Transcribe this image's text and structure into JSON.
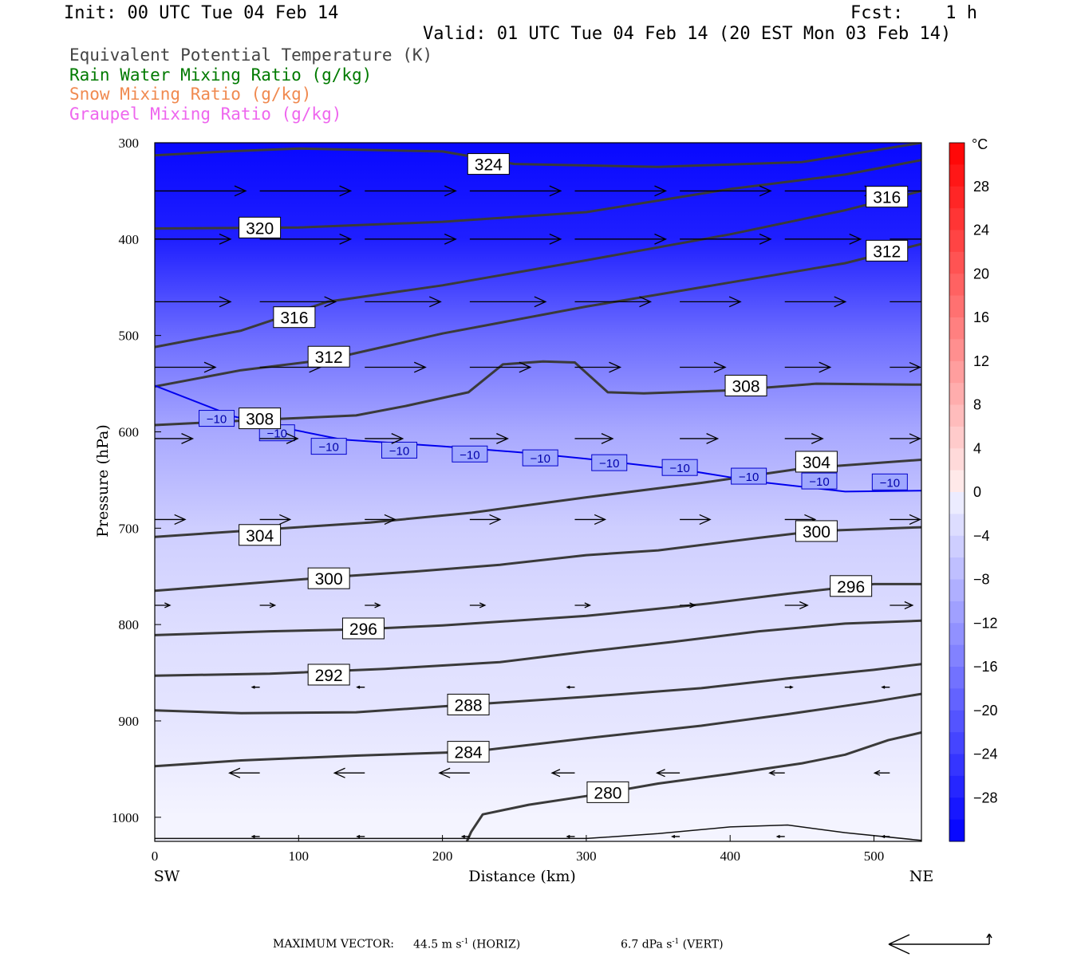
{
  "header": {
    "init": "Init: 00 UTC Tue 04 Feb 14",
    "fcst": "Fcst:    1 h",
    "valid": "Valid: 01 UTC Tue 04 Feb 14 (20 EST Mon 03 Feb 14)"
  },
  "legend": [
    {
      "label": "Equivalent Potential Temperature (K)",
      "color": "#444444"
    },
    {
      "label": "Rain Water Mixing Ratio (g/kg)",
      "color": "#007a00"
    },
    {
      "label": "Snow Mixing Ratio (g/kg)",
      "color": "#f08a50"
    },
    {
      "label": "Graupel Mixing Ratio (g/kg)",
      "color": "#ee66ee"
    }
  ],
  "footer": {
    "max_vector": "MAXIMUM VECTOR:",
    "horiz": "44.5 m s",
    "horiz_exp": "-1",
    "horiz_unit": " (HORIZ)",
    "vert": "6.7 dPa s",
    "vert_exp": "-1",
    "vert_unit": " (VERT)"
  },
  "chart_data": {
    "type": "cross-section contour",
    "xlabel": "Distance (km)",
    "ylabel": "Pressure (hPa)",
    "xlim": [
      0,
      533
    ],
    "ylim": [
      1025,
      300
    ],
    "x_ticks": [
      0,
      100,
      200,
      300,
      400,
      500
    ],
    "y_ticks": [
      300,
      400,
      500,
      600,
      700,
      800,
      900,
      1000
    ],
    "x_end_labels": {
      "left": "SW",
      "right": "NE"
    },
    "colorbar": {
      "unit": "°C",
      "min": -32,
      "max": 32,
      "labels": [
        28,
        24,
        20,
        16,
        12,
        8,
        4,
        0,
        -4,
        -8,
        -12,
        -16,
        -20,
        -24,
        -28
      ],
      "label_text": [
        "28",
        "24",
        "20",
        "16",
        "12",
        "8",
        "4",
        "0",
        "−4",
        "−8",
        "−12",
        "−16",
        "−20",
        "−24",
        "−28"
      ]
    },
    "temperature_field_depth_by_pressure": [
      {
        "p": 300,
        "t": -31
      },
      {
        "p": 400,
        "t": -28
      },
      {
        "p": 500,
        "t": -18
      },
      {
        "p": 600,
        "t": -10
      },
      {
        "p": 700,
        "t": -5
      },
      {
        "p": 800,
        "t": -3
      },
      {
        "p": 900,
        "t": -2
      },
      {
        "p": 1000,
        "t": 0
      }
    ],
    "theta_e_contours": [
      {
        "label": "324",
        "points": [
          [
            0,
            313
          ],
          [
            50,
            309
          ],
          [
            100,
            306
          ],
          [
            200,
            309
          ],
          [
            250,
            322
          ],
          [
            350,
            325
          ],
          [
            450,
            320
          ],
          [
            500,
            308
          ],
          [
            533,
            300
          ]
        ],
        "labels_at": [
          [
            232,
            322
          ]
        ]
      },
      {
        "label": "320",
        "points": [
          [
            0,
            389
          ],
          [
            100,
            388
          ],
          [
            200,
            382
          ],
          [
            300,
            372
          ],
          [
            400,
            348
          ],
          [
            480,
            333
          ],
          [
            533,
            318
          ]
        ],
        "labels_at": [
          [
            73,
            388
          ]
        ]
      },
      {
        "label": "316",
        "points": [
          [
            0,
            512
          ],
          [
            60,
            495
          ],
          [
            120,
            465
          ],
          [
            200,
            448
          ],
          [
            300,
            422
          ],
          [
            400,
            395
          ],
          [
            480,
            370
          ],
          [
            533,
            350
          ]
        ],
        "labels_at": [
          [
            97,
            481
          ],
          [
            509,
            356
          ]
        ]
      },
      {
        "label": "312",
        "points": [
          [
            0,
            553
          ],
          [
            60,
            536
          ],
          [
            120,
            525
          ],
          [
            200,
            498
          ],
          [
            300,
            470
          ],
          [
            400,
            445
          ],
          [
            480,
            425
          ],
          [
            533,
            405
          ]
        ],
        "labels_at": [
          [
            121,
            522
          ],
          [
            509,
            412
          ]
        ]
      },
      {
        "label": "308",
        "points": [
          [
            0,
            593
          ],
          [
            80,
            587
          ],
          [
            140,
            583
          ],
          [
            175,
            573
          ],
          [
            218,
            559
          ],
          [
            242,
            530
          ],
          [
            270,
            527
          ],
          [
            292,
            528
          ],
          [
            315,
            559
          ],
          [
            340,
            560
          ],
          [
            400,
            557
          ],
          [
            460,
            550
          ],
          [
            533,
            551
          ]
        ],
        "labels_at": [
          [
            73,
            586
          ],
          [
            411,
            552
          ]
        ]
      },
      {
        "label": "304",
        "points": [
          [
            0,
            709
          ],
          [
            80,
            701
          ],
          [
            150,
            694
          ],
          [
            220,
            684
          ],
          [
            300,
            668
          ],
          [
            380,
            653
          ],
          [
            450,
            638
          ],
          [
            533,
            629
          ]
        ],
        "labels_at": [
          [
            73,
            707
          ],
          [
            460,
            631
          ]
        ]
      },
      {
        "label": "300",
        "points": [
          [
            0,
            765
          ],
          [
            60,
            758
          ],
          [
            120,
            751
          ],
          [
            180,
            745
          ],
          [
            240,
            738
          ],
          [
            300,
            728
          ],
          [
            350,
            723
          ],
          [
            420,
            710
          ],
          [
            460,
            703
          ],
          [
            533,
            699
          ]
        ],
        "labels_at": [
          [
            121,
            752
          ],
          [
            460,
            703
          ]
        ]
      },
      {
        "label": "296",
        "points": [
          [
            0,
            811
          ],
          [
            80,
            807
          ],
          [
            140,
            805
          ],
          [
            200,
            801
          ],
          [
            300,
            791
          ],
          [
            380,
            779
          ],
          [
            440,
            768
          ],
          [
            500,
            758
          ],
          [
            533,
            758
          ]
        ],
        "labels_at": [
          [
            145,
            804
          ],
          [
            484,
            760
          ]
        ]
      },
      {
        "label": "292",
        "points": [
          [
            0,
            853
          ],
          [
            80,
            851
          ],
          [
            160,
            846
          ],
          [
            240,
            839
          ],
          [
            300,
            828
          ],
          [
            360,
            818
          ],
          [
            420,
            807
          ],
          [
            480,
            799
          ],
          [
            533,
            796
          ]
        ],
        "labels_at": [
          [
            121,
            852
          ],
          [
            121,
            852
          ]
        ]
      },
      {
        "label": "288",
        "points": [
          [
            0,
            889
          ],
          [
            60,
            892
          ],
          [
            140,
            891
          ],
          [
            200,
            885
          ],
          [
            300,
            875
          ],
          [
            380,
            866
          ],
          [
            440,
            856
          ],
          [
            500,
            847
          ],
          [
            533,
            841
          ]
        ],
        "labels_at": [
          [
            218,
            883
          ]
        ]
      },
      {
        "label": "284",
        "points": [
          [
            0,
            947
          ],
          [
            60,
            941
          ],
          [
            140,
            936
          ],
          [
            220,
            932
          ],
          [
            300,
            918
          ],
          [
            380,
            905
          ],
          [
            440,
            893
          ],
          [
            500,
            880
          ],
          [
            533,
            872
          ]
        ],
        "labels_at": [
          [
            218,
            932
          ]
        ]
      },
      {
        "label": "280",
        "points": [
          [
            217,
            1025
          ],
          [
            220,
            1015
          ],
          [
            228,
            997
          ],
          [
            260,
            987
          ],
          [
            300,
            978
          ],
          [
            350,
            965
          ],
          [
            400,
            955
          ],
          [
            450,
            944
          ],
          [
            480,
            935
          ],
          [
            510,
            920
          ],
          [
            533,
            912
          ]
        ],
        "labels_at": [
          [
            315,
            974
          ]
        ]
      },
      {
        "label": "",
        "points": [
          [
            0,
            1022
          ],
          [
            100,
            1022
          ],
          [
            200,
            1022
          ],
          [
            300,
            1022
          ],
          [
            350,
            1017
          ],
          [
            400,
            1010
          ],
          [
            440,
            1008
          ],
          [
            480,
            1016
          ],
          [
            533,
            1024
          ]
        ],
        "labels_at": []
      }
    ],
    "isotherm_minus10": {
      "label": "−10",
      "points": [
        [
          0,
          552
        ],
        [
          55,
          584
        ],
        [
          80,
          593
        ],
        [
          130,
          608
        ],
        [
          200,
          615
        ],
        [
          260,
          622
        ],
        [
          300,
          628
        ],
        [
          370,
          640
        ],
        [
          420,
          652
        ],
        [
          480,
          662
        ],
        [
          533,
          661
        ]
      ],
      "labels_at": [
        [
          43,
          586
        ],
        [
          85,
          601
        ],
        [
          121,
          615
        ],
        [
          170,
          619
        ],
        [
          219,
          623
        ],
        [
          268,
          627
        ],
        [
          316,
          632
        ],
        [
          365,
          637
        ],
        [
          413,
          646
        ],
        [
          462,
          651
        ],
        [
          511,
          652
        ]
      ]
    },
    "wind_vectors": [
      {
        "x": 0,
        "p": 350,
        "u": 12,
        "v": 0
      },
      {
        "x": 73,
        "p": 350,
        "u": 12,
        "v": 0
      },
      {
        "x": 146,
        "p": 350,
        "u": 12,
        "v": 0
      },
      {
        "x": 219,
        "p": 350,
        "u": 12,
        "v": 0
      },
      {
        "x": 292,
        "p": 350,
        "u": 12,
        "v": 0
      },
      {
        "x": 365,
        "p": 350,
        "u": 12,
        "v": 0
      },
      {
        "x": 438,
        "p": 350,
        "u": 12,
        "v": 0
      },
      {
        "x": 511,
        "p": 350,
        "u": 10,
        "v": 0
      },
      {
        "x": 0,
        "p": 400,
        "u": 10,
        "v": 0
      },
      {
        "x": 73,
        "p": 400,
        "u": 12,
        "v": 0
      },
      {
        "x": 146,
        "p": 400,
        "u": 12,
        "v": 0
      },
      {
        "x": 219,
        "p": 400,
        "u": 12,
        "v": 0
      },
      {
        "x": 292,
        "p": 400,
        "u": 12,
        "v": 0
      },
      {
        "x": 365,
        "p": 400,
        "u": 12,
        "v": 0
      },
      {
        "x": 438,
        "p": 400,
        "u": 10,
        "v": 0
      },
      {
        "x": 511,
        "p": 400,
        "u": 8,
        "v": 0
      },
      {
        "x": 0,
        "p": 465,
        "u": 10,
        "v": 0
      },
      {
        "x": 73,
        "p": 465,
        "u": 10,
        "v": 0
      },
      {
        "x": 146,
        "p": 465,
        "u": 10,
        "v": 0
      },
      {
        "x": 219,
        "p": 465,
        "u": 10,
        "v": 0
      },
      {
        "x": 292,
        "p": 465,
        "u": 10,
        "v": 0
      },
      {
        "x": 365,
        "p": 465,
        "u": 8,
        "v": 0
      },
      {
        "x": 438,
        "p": 465,
        "u": 8,
        "v": 0
      },
      {
        "x": 511,
        "p": 465,
        "u": 6,
        "v": 0
      },
      {
        "x": 0,
        "p": 533,
        "u": 8,
        "v": 0
      },
      {
        "x": 73,
        "p": 533,
        "u": 8,
        "v": 0
      },
      {
        "x": 146,
        "p": 533,
        "u": 8,
        "v": 0
      },
      {
        "x": 219,
        "p": 533,
        "u": 8,
        "v": 0
      },
      {
        "x": 292,
        "p": 533,
        "u": 6,
        "v": 0
      },
      {
        "x": 365,
        "p": 533,
        "u": 6,
        "v": 0
      },
      {
        "x": 438,
        "p": 533,
        "u": 6,
        "v": 0
      },
      {
        "x": 511,
        "p": 533,
        "u": 4,
        "v": 0
      },
      {
        "x": 0,
        "p": 607,
        "u": 5,
        "v": 0
      },
      {
        "x": 73,
        "p": 607,
        "u": 5,
        "v": 0
      },
      {
        "x": 146,
        "p": 607,
        "u": 5,
        "v": 0
      },
      {
        "x": 219,
        "p": 607,
        "u": 5,
        "v": 0
      },
      {
        "x": 292,
        "p": 607,
        "u": 5,
        "v": 0
      },
      {
        "x": 365,
        "p": 607,
        "u": 5,
        "v": 0
      },
      {
        "x": 438,
        "p": 607,
        "u": 5,
        "v": 0
      },
      {
        "x": 511,
        "p": 607,
        "u": 4,
        "v": 0
      },
      {
        "x": 0,
        "p": 691,
        "u": 4,
        "v": 0
      },
      {
        "x": 73,
        "p": 691,
        "u": 4,
        "v": 0
      },
      {
        "x": 146,
        "p": 691,
        "u": 4,
        "v": 0
      },
      {
        "x": 219,
        "p": 691,
        "u": 4,
        "v": 0
      },
      {
        "x": 292,
        "p": 691,
        "u": 4,
        "v": 0
      },
      {
        "x": 365,
        "p": 691,
        "u": 4,
        "v": 0
      },
      {
        "x": 438,
        "p": 691,
        "u": 4,
        "v": 0
      },
      {
        "x": 511,
        "p": 691,
        "u": 4,
        "v": 0
      },
      {
        "x": 0,
        "p": 780,
        "u": 2,
        "v": 0
      },
      {
        "x": 73,
        "p": 780,
        "u": 2,
        "v": 0
      },
      {
        "x": 146,
        "p": 780,
        "u": 2,
        "v": 0
      },
      {
        "x": 219,
        "p": 780,
        "u": 2,
        "v": 0
      },
      {
        "x": 292,
        "p": 780,
        "u": 2,
        "v": 0
      },
      {
        "x": 365,
        "p": 780,
        "u": 2,
        "v": 0
      },
      {
        "x": 438,
        "p": 780,
        "u": 3,
        "v": 0
      },
      {
        "x": 511,
        "p": 780,
        "u": 3,
        "v": 0
      },
      {
        "x": 73,
        "p": 865,
        "u": -1,
        "v": 0
      },
      {
        "x": 146,
        "p": 865,
        "u": -1,
        "v": 0
      },
      {
        "x": 292,
        "p": 865,
        "u": -1,
        "v": 0
      },
      {
        "x": 438,
        "p": 865,
        "u": 1,
        "v": 0
      },
      {
        "x": 511,
        "p": 865,
        "u": -1,
        "v": 0
      },
      {
        "x": 73,
        "p": 954,
        "u": -4,
        "v": 0
      },
      {
        "x": 146,
        "p": 954,
        "u": -4,
        "v": 0
      },
      {
        "x": 219,
        "p": 954,
        "u": -4,
        "v": 0
      },
      {
        "x": 292,
        "p": 954,
        "u": -3,
        "v": 0
      },
      {
        "x": 365,
        "p": 954,
        "u": -3,
        "v": 0
      },
      {
        "x": 438,
        "p": 954,
        "u": -2,
        "v": 0
      },
      {
        "x": 511,
        "p": 954,
        "u": -2,
        "v": 0
      },
      {
        "x": 73,
        "p": 1020,
        "u": -1,
        "v": 0
      },
      {
        "x": 146,
        "p": 1020,
        "u": -1,
        "v": 0
      },
      {
        "x": 219,
        "p": 1020,
        "u": -1,
        "v": 0
      },
      {
        "x": 292,
        "p": 1020,
        "u": -1,
        "v": 0
      },
      {
        "x": 365,
        "p": 1020,
        "u": -1,
        "v": 0
      },
      {
        "x": 438,
        "p": 1020,
        "u": -1,
        "v": 0
      },
      {
        "x": 511,
        "p": 1020,
        "u": -1,
        "v": 0
      }
    ]
  }
}
